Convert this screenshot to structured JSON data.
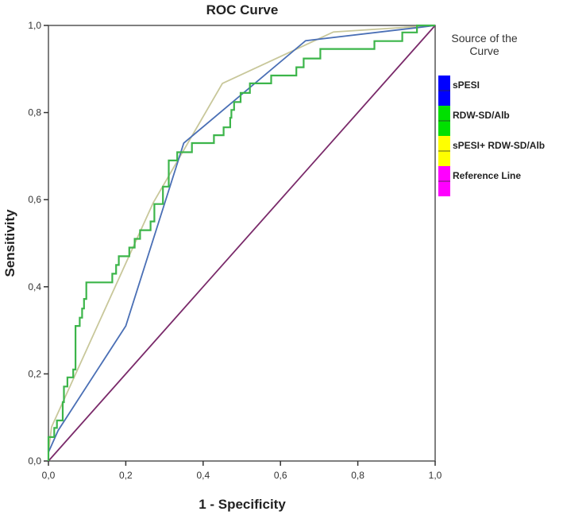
{
  "chart_data": {
    "type": "line",
    "title": "ROC Curve",
    "xlabel": "1 - Specificity",
    "ylabel": "Sensitivity",
    "xlim": [
      0,
      1
    ],
    "ylim": [
      0,
      1
    ],
    "grid": false,
    "xticks": [
      "0,0",
      "0,2",
      "0,4",
      "0,6",
      "0,8",
      "1,0"
    ],
    "yticks": [
      "0,0",
      "0,2",
      "0,4",
      "0,6",
      "0,8",
      "1,0"
    ],
    "legend": {
      "title": "Source of the Curve",
      "placement": "right",
      "entries": [
        {
          "label": "sPESI",
          "swatch": "#0000ff"
        },
        {
          "label": "RDW-SD/Alb",
          "swatch": "#00e000"
        },
        {
          "label": "sPESI+ RDW-SD/Alb",
          "swatch": "#ffff00"
        },
        {
          "label": "Reference Line",
          "swatch": "#ff00ff"
        }
      ]
    },
    "series": [
      {
        "name": "sPESI",
        "color": "#4a6fb5",
        "points": [
          [
            0,
            0.02
          ],
          [
            0.025,
            0.07
          ],
          [
            0.2,
            0.31
          ],
          [
            0.35,
            0.73
          ],
          [
            0.665,
            0.965
          ],
          [
            0.955,
            0.995
          ],
          [
            1,
            1
          ]
        ]
      },
      {
        "name": "RDW-SD/Alb",
        "color": "#3cb54a",
        "step": true,
        "points": [
          [
            0,
            0
          ],
          [
            0,
            0.055
          ],
          [
            0.015,
            0.055
          ],
          [
            0.015,
            0.076
          ],
          [
            0.022,
            0.076
          ],
          [
            0.022,
            0.093
          ],
          [
            0.037,
            0.093
          ],
          [
            0.037,
            0.135
          ],
          [
            0.04,
            0.135
          ],
          [
            0.04,
            0.171
          ],
          [
            0.049,
            0.171
          ],
          [
            0.049,
            0.192
          ],
          [
            0.064,
            0.192
          ],
          [
            0.064,
            0.21
          ],
          [
            0.07,
            0.21
          ],
          [
            0.07,
            0.31
          ],
          [
            0.081,
            0.31
          ],
          [
            0.081,
            0.329
          ],
          [
            0.087,
            0.329
          ],
          [
            0.087,
            0.35
          ],
          [
            0.092,
            0.35
          ],
          [
            0.092,
            0.372
          ],
          [
            0.098,
            0.372
          ],
          [
            0.098,
            0.41
          ],
          [
            0.165,
            0.41
          ],
          [
            0.165,
            0.43
          ],
          [
            0.175,
            0.43
          ],
          [
            0.175,
            0.45
          ],
          [
            0.182,
            0.45
          ],
          [
            0.182,
            0.47
          ],
          [
            0.209,
            0.47
          ],
          [
            0.209,
            0.49
          ],
          [
            0.223,
            0.49
          ],
          [
            0.223,
            0.51
          ],
          [
            0.237,
            0.51
          ],
          [
            0.237,
            0.53
          ],
          [
            0.264,
            0.53
          ],
          [
            0.264,
            0.55
          ],
          [
            0.274,
            0.55
          ],
          [
            0.274,
            0.59
          ],
          [
            0.296,
            0.59
          ],
          [
            0.296,
            0.63
          ],
          [
            0.311,
            0.63
          ],
          [
            0.311,
            0.69
          ],
          [
            0.333,
            0.69
          ],
          [
            0.333,
            0.709
          ],
          [
            0.371,
            0.709
          ],
          [
            0.371,
            0.73
          ],
          [
            0.428,
            0.73
          ],
          [
            0.428,
            0.748
          ],
          [
            0.453,
            0.748
          ],
          [
            0.453,
            0.766
          ],
          [
            0.47,
            0.766
          ],
          [
            0.47,
            0.788
          ],
          [
            0.473,
            0.788
          ],
          [
            0.473,
            0.806
          ],
          [
            0.48,
            0.806
          ],
          [
            0.48,
            0.824
          ],
          [
            0.497,
            0.824
          ],
          [
            0.497,
            0.845
          ],
          [
            0.521,
            0.845
          ],
          [
            0.521,
            0.867
          ],
          [
            0.576,
            0.867
          ],
          [
            0.576,
            0.885
          ],
          [
            0.641,
            0.885
          ],
          [
            0.641,
            0.904
          ],
          [
            0.66,
            0.904
          ],
          [
            0.66,
            0.924
          ],
          [
            0.703,
            0.924
          ],
          [
            0.703,
            0.946
          ],
          [
            0.843,
            0.946
          ],
          [
            0.843,
            0.964
          ],
          [
            0.915,
            0.964
          ],
          [
            0.915,
            0.984
          ],
          [
            0.953,
            0.984
          ],
          [
            0.953,
            1
          ],
          [
            1,
            1
          ]
        ]
      },
      {
        "name": "sPESI+ RDW-SD/Alb",
        "color": "#c8c79a",
        "points": [
          [
            0,
            0.02
          ],
          [
            0.008,
            0.078
          ],
          [
            0.271,
            0.593
          ],
          [
            0.45,
            0.867
          ],
          [
            0.737,
            0.985
          ],
          [
            1,
            1
          ]
        ]
      },
      {
        "name": "Reference Line",
        "color": "#7a2a6a",
        "points": [
          [
            0,
            0
          ],
          [
            1,
            1
          ]
        ]
      }
    ]
  }
}
